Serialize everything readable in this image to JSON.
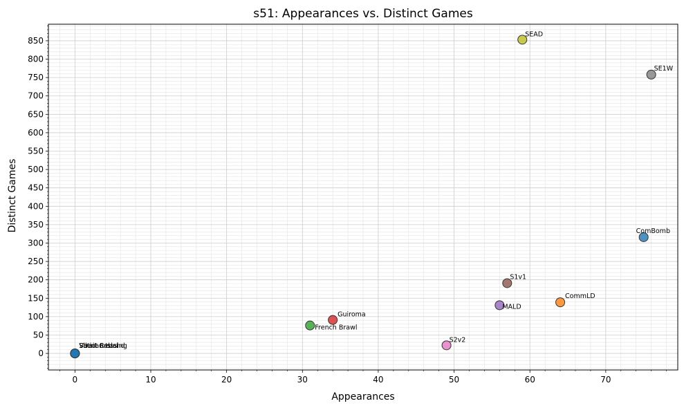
{
  "chart_data": {
    "type": "scatter",
    "title": "s51: Appearances vs. Distinct Games",
    "xlabel": "Appearances",
    "ylabel": "Distinct Games",
    "xlim": [
      -3.5,
      79.5
    ],
    "ylim": [
      -45,
      895
    ],
    "xticks": [
      0,
      10,
      20,
      30,
      40,
      50,
      60,
      70
    ],
    "yticks": [
      0,
      50,
      100,
      150,
      200,
      250,
      300,
      350,
      400,
      450,
      500,
      550,
      600,
      650,
      700,
      750,
      800,
      850
    ],
    "grid": true,
    "minor_grid": true,
    "points": [
      {
        "label": "Vatican Island",
        "x": 0,
        "y": 0,
        "color": "#1f77b4"
      },
      {
        "label": "Strait Crossing",
        "x": 0,
        "y": 0,
        "color": "#1f77b4"
      },
      {
        "label": "Silent Rebel",
        "x": 0,
        "y": 0,
        "color": "#1f77b4"
      },
      {
        "label": "French Brawl",
        "x": 31,
        "y": 76,
        "color": "#2ca02c"
      },
      {
        "label": "Guiroma",
        "x": 34,
        "y": 91,
        "color": "#d62728"
      },
      {
        "label": "S2v2",
        "x": 49,
        "y": 22,
        "color": "#e377c2"
      },
      {
        "label": "MALD",
        "x": 56,
        "y": 131,
        "color": "#9467bd"
      },
      {
        "label": "S1v1",
        "x": 57,
        "y": 191,
        "color": "#8c564b"
      },
      {
        "label": "SEAD",
        "x": 59,
        "y": 853,
        "color": "#bcbd22"
      },
      {
        "label": "CommLD",
        "x": 64,
        "y": 139,
        "color": "#ff7f0e"
      },
      {
        "label": "ComBomb",
        "x": 75,
        "y": 316,
        "color": "#1f77b4"
      },
      {
        "label": "SE1W",
        "x": 76,
        "y": 758,
        "color": "#7f7f7f"
      }
    ]
  }
}
